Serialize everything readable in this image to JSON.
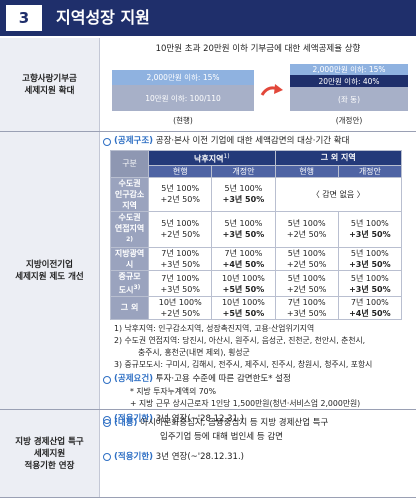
{
  "header": {
    "number": "3",
    "title": "지역성장 지원"
  },
  "sections": [
    {
      "label": [
        "고향사랑기부금",
        "세제지원 확대"
      ],
      "caption": "10만원 초과 20만원 이하 기부금에 대한 세액공제율 상향",
      "current": {
        "bars": [
          "2,000만원 이하: 15%",
          "10만원 이하: 100/110"
        ],
        "label": "(현행)"
      },
      "revised": {
        "bars": [
          "2,000만원 이하: 15%",
          "20만원 이하: 40%",
          "(좌 동)"
        ],
        "label": "(개정안)"
      }
    },
    {
      "label": [
        "지방이전기업",
        "세제지원 제도 개선"
      ],
      "intro": {
        "tag": "(공제구조)",
        "text": "공장·본사 이전 기업에 대한 세액감면의 대상·기간 확대"
      },
      "table": {
        "corner": "구분",
        "groups": [
          {
            "text": "낙후지역",
            "sup": "1)"
          },
          {
            "text": "그 외 지역"
          }
        ],
        "subheads": [
          "현행",
          "개정안",
          "현행",
          "개정안"
        ],
        "rows": [
          {
            "label": {
              "lines": [
                "수도권",
                "인구감소",
                "지역"
              ]
            },
            "cells": [
              [
                "5년 100%",
                "+2년 50%"
              ],
              [
                "5년 100%",
                "+3년 50%"
              ],
              [
                "〈 감면 없음 〉"
              ]
            ]
          },
          {
            "label": {
              "lines": [
                "수도권",
                "연접지역"
              ],
              "sup": "2)"
            },
            "cells": [
              [
                "5년 100%",
                "+2년 50%"
              ],
              [
                "5년 100%",
                "+3년 50%"
              ],
              [
                "5년 100%",
                "+2년 50%"
              ],
              [
                "5년 100%",
                "+3년 50%"
              ]
            ]
          },
          {
            "label": {
              "lines": [
                "지방광역시"
              ]
            },
            "cells": [
              [
                "7년 100%",
                "+3년 50%"
              ],
              [
                "7년 100%",
                "+4년 50%"
              ],
              [
                "5년 100%",
                "+2년 50%"
              ],
              [
                "5년 100%",
                "+3년 50%"
              ]
            ]
          },
          {
            "label": {
              "lines": [
                "중규모",
                "도시"
              ],
              "sup": "3)"
            },
            "cells": [
              [
                "7년 100%",
                "+3년 50%"
              ],
              [
                "10년 100%",
                "+5년 50%"
              ],
              [
                "5년 100%",
                "+2년 50%"
              ],
              [
                "5년 100%",
                "+3년 50%"
              ]
            ]
          },
          {
            "label": {
              "lines": [
                "그 외"
              ]
            },
            "cells": [
              [
                "10년 100%",
                "+2년 50%"
              ],
              [
                "10년 100%",
                "+5년 50%"
              ],
              [
                "7년 100%",
                "+3년 50%"
              ],
              [
                "7년 100%",
                "+4년 50%"
              ]
            ]
          }
        ]
      },
      "notes": [
        {
          "mark": "1)",
          "lines": [
            "낙후지역: 인구감소지역, 성장촉진지역, 고용·산업위기지역"
          ]
        },
        {
          "mark": "2)",
          "lines": [
            "수도권 연접지역: 당진시, 아산시, 원주시, 음성군, 진천군, 천안시, 춘천시,",
            "충주시, 홍천군(내면 제외), 횡성군"
          ]
        },
        {
          "mark": "3)",
          "lines": [
            "중규모도시: 구미시, 김해시, 전주시, 제주시, 진주시, 창원시, 청주시, 포항시"
          ]
        }
      ],
      "requirement": {
        "tag": "(공제요건)",
        "text": "투자·고용 수준에 따른 감면한도* 설정",
        "details": [
          "* 지방 투자누계액의 70%",
          "+ 지방 근무 상시근로자 1인당 1,500만원(청년·서비스업 2,000만원)"
        ]
      },
      "period": {
        "tag": "(적용기한)",
        "text": "3년 연장(~'28.12.31.)"
      }
    },
    {
      "label": [
        "지방 경제산업 특구",
        "세제지원",
        "적용기한 연장"
      ],
      "items": [
        {
          "tag": "(내용)",
          "lines": [
            "아시아문화중심지, 금융중심지 등 지방 경제산업 특구",
            "입주기업 등에 대해 법인세 등 감면"
          ]
        },
        {
          "tag": "(적용기한)",
          "lines": [
            "3년 연장(~'28.12.31.)"
          ]
        }
      ]
    }
  ]
}
